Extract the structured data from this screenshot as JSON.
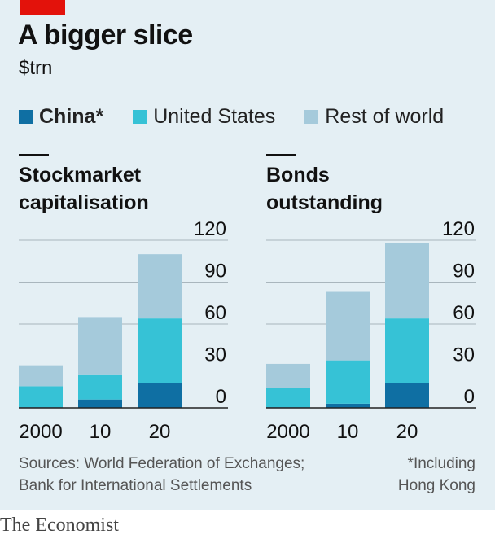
{
  "header": {
    "title": "A bigger slice",
    "subtitle": "$trn"
  },
  "legend": [
    {
      "label": "China*",
      "color": "#0f6fa3"
    },
    {
      "label": "United States",
      "color": "#36c2d6"
    },
    {
      "label": "Rest of world",
      "color": "#a5cadb"
    }
  ],
  "panels": {
    "left_title_1": "Stockmarket",
    "left_title_2": "capitalisation",
    "right_title_1": "Bonds",
    "right_title_2": "outstanding"
  },
  "chart_data": [
    {
      "type": "bar",
      "stacked": true,
      "title": "Stockmarket capitalisation",
      "categories": [
        "2000",
        "10",
        "20"
      ],
      "series": [
        {
          "name": "China*",
          "values": [
            0.5,
            6,
            18
          ],
          "color": "#0f6fa3"
        },
        {
          "name": "United States",
          "values": [
            15,
            18,
            46
          ],
          "color": "#36c2d6"
        },
        {
          "name": "Rest of world",
          "values": [
            15,
            41,
            46
          ],
          "color": "#a5cadb"
        }
      ],
      "ylim": [
        0,
        120
      ],
      "yticks": [
        "0",
        "30",
        "60",
        "90",
        "120"
      ],
      "grid": true
    },
    {
      "type": "bar",
      "stacked": true,
      "title": "Bonds outstanding",
      "categories": [
        "2000",
        "10",
        "20"
      ],
      "series": [
        {
          "name": "China*",
          "values": [
            0.5,
            3,
            18
          ],
          "color": "#0f6fa3"
        },
        {
          "name": "United States",
          "values": [
            14,
            31,
            46
          ],
          "color": "#36c2d6"
        },
        {
          "name": "Rest of world",
          "values": [
            17,
            49,
            54
          ],
          "color": "#a5cadb"
        }
      ],
      "ylim": [
        0,
        120
      ],
      "yticks": [
        "0",
        "30",
        "60",
        "90",
        "120"
      ],
      "grid": true
    }
  ],
  "footer": {
    "source_line1": "Sources: World Federation of Exchanges;",
    "source_line2": "Bank for International Settlements",
    "note_line1": "*Including",
    "note_line2": "Hong Kong",
    "brand": "The Economist"
  }
}
